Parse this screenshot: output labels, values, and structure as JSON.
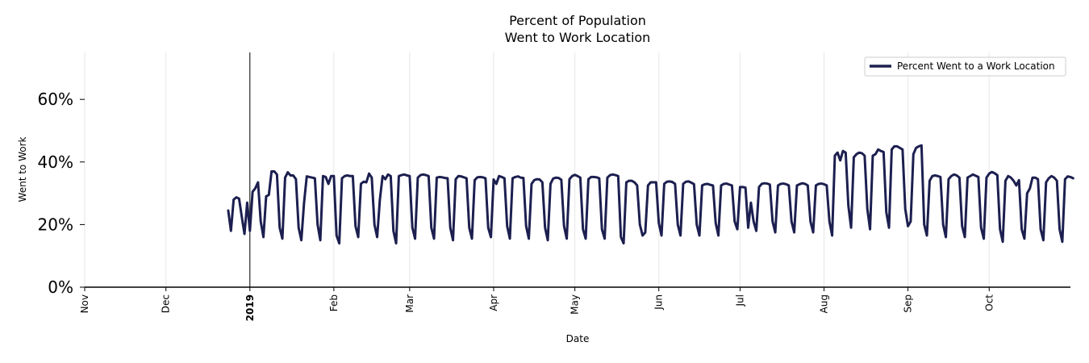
{
  "chart_data": {
    "type": "line",
    "title_line1": "Percent of Population",
    "title_line2": "Went to Work Location",
    "xlabel": "Date",
    "ylabel": "Went to Work",
    "ylim": [
      0,
      75
    ],
    "yticks": [
      {
        "value": 0,
        "label": "0%"
      },
      {
        "value": 20,
        "label": "20%"
      },
      {
        "value": 40,
        "label": "40%"
      },
      {
        "value": 60,
        "label": "60%"
      }
    ],
    "xlim": [
      "2018-11-01",
      "2019-10-31"
    ],
    "xticks": [
      {
        "date": "2018-11-01",
        "label": "Nov",
        "bold": false
      },
      {
        "date": "2018-12-01",
        "label": "Dec",
        "bold": false
      },
      {
        "date": "2019-01-01",
        "label": "2019",
        "bold": true
      },
      {
        "date": "2019-02-01",
        "label": "Feb",
        "bold": false
      },
      {
        "date": "2019-03-01",
        "label": "Mar",
        "bold": false
      },
      {
        "date": "2019-04-01",
        "label": "Apr",
        "bold": false
      },
      {
        "date": "2019-05-01",
        "label": "May",
        "bold": false
      },
      {
        "date": "2019-06-01",
        "label": "Jun",
        "bold": false
      },
      {
        "date": "2019-07-01",
        "label": "Jul",
        "bold": false
      },
      {
        "date": "2019-08-01",
        "label": "Aug",
        "bold": false
      },
      {
        "date": "2019-09-01",
        "label": "Sep",
        "bold": false
      },
      {
        "date": "2019-10-01",
        "label": "Oct",
        "bold": false
      }
    ],
    "vline_date": "2019-01-01",
    "grid": "vertical",
    "legend_position": "top-right",
    "series": [
      {
        "name": "Percent Went to a Work Location",
        "color": "#1c1f4f",
        "start": "2018-12-24",
        "values": [
          24.5,
          18,
          28,
          28.7,
          28.3,
          22.5,
          17,
          27,
          18,
          30.5,
          31.6,
          33.5,
          21,
          16,
          29,
          29.5,
          37,
          37,
          36,
          19,
          15.5,
          35,
          36.7,
          35.7,
          35.7,
          34.5,
          19,
          15,
          27,
          35.4,
          35.2,
          35,
          34.8,
          20,
          15,
          35.5,
          35.2,
          33,
          35.5,
          35.5,
          16.5,
          14,
          34.8,
          35.5,
          35.7,
          35.5,
          35.5,
          19.5,
          16,
          33,
          33.7,
          33.5,
          36.3,
          35,
          20,
          16,
          28,
          35.5,
          34.5,
          36,
          35.5,
          18,
          14,
          35.5,
          35.8,
          36,
          35.7,
          35.5,
          19,
          15.5,
          35,
          35.8,
          36,
          35.8,
          35.5,
          19,
          15.5,
          35,
          35.2,
          35.1,
          34.9,
          34.8,
          19,
          15,
          34.5,
          35.5,
          35.4,
          35.1,
          34.8,
          19,
          15.5,
          34.2,
          35.1,
          35.2,
          35.1,
          34.8,
          19,
          16,
          34.4,
          33,
          35.5,
          35.2,
          34.8,
          19.5,
          15.5,
          34.8,
          35.2,
          35.4,
          35,
          34.9,
          19.5,
          15.5,
          33,
          34.2,
          34.5,
          34.4,
          33.5,
          19,
          15,
          33,
          34.7,
          35,
          34.9,
          34.3,
          19.5,
          15.5,
          34.5,
          35.5,
          35.9,
          35.5,
          35,
          18.5,
          15.5,
          34.5,
          35.2,
          35.2,
          35.1,
          34.8,
          18.5,
          15.5,
          35,
          35.8,
          36,
          35.8,
          35.5,
          16,
          14,
          33.5,
          34,
          34,
          33.5,
          32.5,
          20,
          16.5,
          17.5,
          32.5,
          33.5,
          33.5,
          33.5,
          20.5,
          16.5,
          33,
          33.7,
          33.8,
          33.6,
          33,
          20,
          16.5,
          33,
          33.7,
          33.8,
          33.4,
          32.9,
          20,
          16.5,
          32.5,
          32.9,
          33,
          32.7,
          32.5,
          20.5,
          16.5,
          32.5,
          33,
          33.1,
          32.8,
          32.5,
          21,
          18.5,
          32,
          32,
          31.8,
          19,
          27,
          21,
          18,
          32,
          33,
          33.2,
          33.1,
          32.8,
          21,
          17.5,
          32.5,
          33,
          33.1,
          32.9,
          32.5,
          21,
          17.5,
          32.5,
          32.9,
          33.2,
          33,
          32.5,
          21,
          17.5,
          32.5,
          33,
          33.1,
          32.9,
          32.5,
          21,
          16.5,
          42,
          43,
          40.5,
          43.5,
          43,
          26,
          19,
          41.5,
          42.5,
          43,
          42.8,
          42,
          25,
          18.5,
          42,
          42.5,
          44,
          43.5,
          43.2,
          24,
          19,
          44,
          45,
          45,
          44.5,
          44,
          25,
          19.5,
          21,
          42.5,
          44.5,
          45,
          45.3,
          20,
          16.5,
          34,
          35.5,
          35.7,
          35.5,
          35.2,
          20,
          16,
          34.5,
          35.5,
          36,
          35.7,
          35,
          19.5,
          16,
          35,
          35.5,
          36,
          35.6,
          35.2,
          19,
          15.5,
          35,
          36.3,
          36.8,
          36.4,
          35.8,
          18.5,
          14.5,
          34,
          35.5,
          35,
          34,
          32.5,
          34.2,
          18.5,
          15.5,
          30,
          31.5,
          35,
          35,
          34.5,
          18.5,
          15,
          33.5,
          34.8,
          35.5,
          35,
          34,
          18.5,
          14.5,
          34.5,
          35.4,
          35.2,
          34.8
        ]
      }
    ]
  }
}
